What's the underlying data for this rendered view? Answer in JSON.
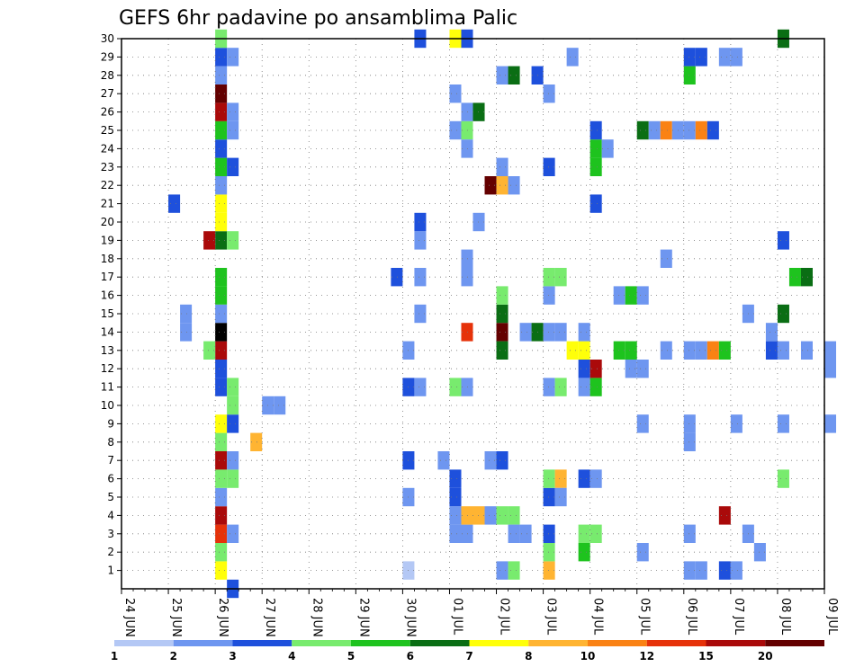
{
  "chart_data": {
    "type": "heatmap",
    "title": "GEFS 6hr padavine po ansamblima Palic",
    "x_tick_labels": [
      "24 JUN",
      "25 JUN",
      "26 JUN",
      "27 JUN",
      "28 JUN",
      "29 JUN",
      "30 JUN",
      "01 JUL",
      "02 JUL",
      "03 JUL",
      "04 JUL",
      "05 JUL",
      "06 JUL",
      "07 JUL",
      "08 JUL",
      "09 JUL"
    ],
    "y_tick_labels": [
      "1",
      "2",
      "3",
      "4",
      "5",
      "6",
      "7",
      "8",
      "9",
      "10",
      "11",
      "12",
      "13",
      "14",
      "15",
      "16",
      "17",
      "18",
      "19",
      "20",
      "21",
      "22",
      "23",
      "24",
      "25",
      "26",
      "27",
      "28",
      "29",
      "30"
    ],
    "x_range_days": [
      0,
      15
    ],
    "y_range": [
      0,
      30
    ],
    "grid": true,
    "grid_style": "dotted",
    "color_scale": {
      "colors": [
        "#b4c8f5",
        "#6e96f0",
        "#1e50dc",
        "#78eb6e",
        "#1ec31e",
        "#0a6e14",
        "#ffff0a",
        "#ffb432",
        "#fa8214",
        "#e6320a",
        "#aa0a0a",
        "#640000"
      ],
      "labels": [
        "1",
        "2",
        "3",
        "4",
        "5",
        "6",
        "7",
        "8",
        "10",
        "12",
        "15",
        "20"
      ]
    },
    "cells": [
      [
        2,
        1,
        6
      ],
      [
        2,
        2,
        3
      ],
      [
        2,
        3,
        9
      ],
      [
        2,
        4,
        10
      ],
      [
        2,
        5,
        1
      ],
      [
        2,
        6,
        3
      ],
      [
        2,
        7,
        10
      ],
      [
        2,
        8,
        3
      ],
      [
        2,
        9,
        6
      ],
      [
        2,
        11,
        2
      ],
      [
        2,
        12,
        2
      ],
      [
        2,
        13,
        10
      ],
      [
        2,
        14,
        12
      ],
      [
        2,
        15,
        1
      ],
      [
        2,
        16,
        4
      ],
      [
        2,
        17,
        4
      ],
      [
        2,
        19,
        5
      ],
      [
        2,
        20,
        6
      ],
      [
        2,
        21,
        6
      ],
      [
        2,
        22,
        1
      ],
      [
        2,
        23,
        4
      ],
      [
        2,
        24,
        2
      ],
      [
        2,
        25,
        4
      ],
      [
        2,
        26,
        10
      ],
      [
        2,
        27,
        11
      ],
      [
        2,
        28,
        1
      ],
      [
        2,
        29,
        2
      ],
      [
        2,
        30,
        3
      ],
      [
        2.25,
        0,
        2
      ],
      [
        2.25,
        3,
        1
      ],
      [
        2.25,
        6,
        3
      ],
      [
        2.25,
        7,
        1
      ],
      [
        2.25,
        9,
        2
      ],
      [
        2.25,
        10,
        3
      ],
      [
        2.25,
        11,
        3
      ],
      [
        2.25,
        19,
        3
      ],
      [
        2.25,
        25,
        1
      ],
      [
        2.25,
        26,
        1
      ],
      [
        2.25,
        29,
        1
      ],
      [
        1.75,
        13,
        3
      ],
      [
        1.75,
        19,
        10
      ],
      [
        1.25,
        14,
        1
      ],
      [
        1.25,
        15,
        1
      ],
      [
        1.0,
        21,
        2
      ],
      [
        2.25,
        23,
        2
      ],
      [
        3.0,
        10,
        1
      ],
      [
        3.25,
        10,
        1
      ],
      [
        2.75,
        8,
        7
      ],
      [
        5.75,
        17,
        2
      ],
      [
        6.0,
        1,
        0
      ],
      [
        6.0,
        5,
        1
      ],
      [
        6.0,
        7,
        2
      ],
      [
        6.0,
        11,
        2
      ],
      [
        6.0,
        13,
        1
      ],
      [
        6.25,
        15,
        1
      ],
      [
        6.25,
        17,
        1
      ],
      [
        6.25,
        19,
        1
      ],
      [
        6.25,
        20,
        2
      ],
      [
        6.25,
        11,
        1
      ],
      [
        6.25,
        30,
        2
      ],
      [
        6.75,
        7,
        1
      ],
      [
        7.0,
        30,
        6
      ],
      [
        7.25,
        14,
        9
      ],
      [
        7.0,
        3,
        1
      ],
      [
        7.0,
        4,
        1
      ],
      [
        7.0,
        5,
        2
      ],
      [
        7.0,
        6,
        2
      ],
      [
        7.25,
        3,
        1
      ],
      [
        7.25,
        4,
        7
      ],
      [
        7.5,
        4,
        7
      ],
      [
        7.0,
        11,
        3
      ],
      [
        7.25,
        11,
        1
      ],
      [
        7.0,
        25,
        1
      ],
      [
        7.25,
        25,
        3
      ],
      [
        7.25,
        24,
        1
      ],
      [
        7.25,
        26,
        1
      ],
      [
        7.5,
        26,
        5
      ],
      [
        7.0,
        27,
        1
      ],
      [
        7.25,
        30,
        2
      ],
      [
        7.25,
        17,
        1
      ],
      [
        7.25,
        18,
        1
      ],
      [
        7.75,
        4,
        1
      ],
      [
        7.75,
        7,
        1
      ],
      [
        7.5,
        20,
        1
      ],
      [
        7.75,
        22,
        11
      ],
      [
        8.0,
        4,
        3
      ],
      [
        8.25,
        4,
        3
      ],
      [
        8.0,
        7,
        2
      ],
      [
        8.0,
        14,
        11
      ],
      [
        8.0,
        13,
        5
      ],
      [
        8.0,
        15,
        5
      ],
      [
        8.0,
        16,
        3
      ],
      [
        8.0,
        22,
        7
      ],
      [
        8.0,
        23,
        1
      ],
      [
        8.0,
        28,
        1
      ],
      [
        8.25,
        28,
        5
      ],
      [
        8.0,
        1,
        1
      ],
      [
        8.25,
        1,
        3
      ],
      [
        8.25,
        22,
        1
      ],
      [
        8.25,
        3,
        1
      ],
      [
        8.5,
        3,
        1
      ],
      [
        8.5,
        14,
        1
      ],
      [
        8.75,
        14,
        5
      ],
      [
        8.75,
        28,
        2
      ],
      [
        9.0,
        1,
        7
      ],
      [
        9.0,
        2,
        3
      ],
      [
        9.0,
        3,
        2
      ],
      [
        9.0,
        5,
        2
      ],
      [
        9.0,
        6,
        3
      ],
      [
        9.25,
        6,
        7
      ],
      [
        9.0,
        11,
        1
      ],
      [
        9.25,
        11,
        3
      ],
      [
        9.0,
        16,
        1
      ],
      [
        9.0,
        14,
        1
      ],
      [
        9.25,
        14,
        1
      ],
      [
        9.0,
        17,
        3
      ],
      [
        9.25,
        17,
        3
      ],
      [
        9.0,
        23,
        2
      ],
      [
        9.0,
        27,
        1
      ],
      [
        9.25,
        5,
        1
      ],
      [
        9.5,
        13,
        6
      ],
      [
        9.75,
        13,
        6
      ],
      [
        9.5,
        29,
        1
      ],
      [
        9.75,
        3,
        3
      ],
      [
        10.0,
        3,
        3
      ],
      [
        9.75,
        2,
        4
      ],
      [
        9.75,
        6,
        2
      ],
      [
        10.0,
        6,
        1
      ],
      [
        9.75,
        11,
        1
      ],
      [
        10.0,
        11,
        4
      ],
      [
        9.75,
        12,
        2
      ],
      [
        10.0,
        12,
        10
      ],
      [
        9.75,
        14,
        1
      ],
      [
        10.0,
        21,
        2
      ],
      [
        10.0,
        23,
        4
      ],
      [
        10.0,
        24,
        4
      ],
      [
        10.0,
        25,
        2
      ],
      [
        10.25,
        24,
        1
      ],
      [
        10.5,
        13,
        4
      ],
      [
        10.75,
        13,
        4
      ],
      [
        10.5,
        16,
        1
      ],
      [
        10.75,
        16,
        4
      ],
      [
        11.0,
        16,
        1
      ],
      [
        10.75,
        12,
        1
      ],
      [
        11.0,
        12,
        1
      ],
      [
        11.0,
        2,
        1
      ],
      [
        11.0,
        9,
        1
      ],
      [
        11.0,
        25,
        5
      ],
      [
        11.25,
        25,
        1
      ],
      [
        11.5,
        25,
        8
      ],
      [
        11.75,
        25,
        1
      ],
      [
        12.0,
        25,
        1
      ],
      [
        12.25,
        25,
        8
      ],
      [
        12.5,
        25,
        2
      ],
      [
        11.5,
        13,
        1
      ],
      [
        11.5,
        18,
        1
      ],
      [
        12.0,
        1,
        1
      ],
      [
        12.25,
        1,
        1
      ],
      [
        12.0,
        3,
        1
      ],
      [
        12.0,
        8,
        1
      ],
      [
        12.0,
        9,
        1
      ],
      [
        12.0,
        13,
        1
      ],
      [
        12.25,
        13,
        1
      ],
      [
        12.5,
        13,
        8
      ],
      [
        12.75,
        13,
        4
      ],
      [
        12.0,
        28,
        4
      ],
      [
        12.0,
        29,
        2
      ],
      [
        12.25,
        29,
        2
      ],
      [
        12.75,
        1,
        2
      ],
      [
        13.0,
        1,
        1
      ],
      [
        12.75,
        4,
        10
      ],
      [
        12.75,
        29,
        1
      ],
      [
        13.0,
        29,
        1
      ],
      [
        13.0,
        9,
        1
      ],
      [
        13.25,
        3,
        1
      ],
      [
        13.25,
        15,
        1
      ],
      [
        13.5,
        2,
        1
      ],
      [
        13.75,
        13,
        2
      ],
      [
        14.0,
        13,
        1
      ],
      [
        13.75,
        14,
        1
      ],
      [
        14.0,
        6,
        3
      ],
      [
        14.0,
        9,
        1
      ],
      [
        14.0,
        15,
        5
      ],
      [
        14.0,
        19,
        2
      ],
      [
        14.0,
        30,
        5
      ],
      [
        14.25,
        17,
        4
      ],
      [
        14.5,
        17,
        5
      ],
      [
        14.5,
        13,
        1
      ],
      [
        15.0,
        13,
        1
      ],
      [
        15.0,
        9,
        1
      ],
      [
        15.0,
        12,
        1
      ]
    ]
  }
}
